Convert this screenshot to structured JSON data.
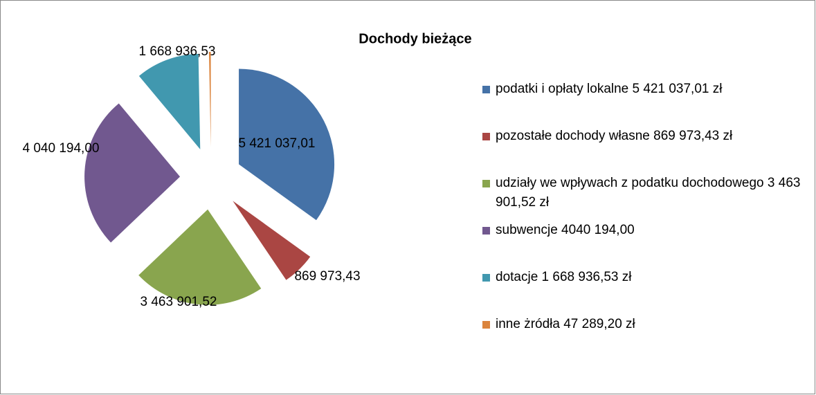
{
  "chart_data": {
    "type": "pie",
    "title": "Dochody bieżące",
    "categories": [
      "podatki i opłaty lokalne 5 421 037,01 zł",
      "pozostałe dochody własne 869 973,43 zł",
      "udziały we wpływach z podatku dochodowego 3 463 901,52 zł",
      "subwencje 4040 194,00",
      "dotacje 1 668 936,53 zł",
      "inne żródła 47 289,20 zł"
    ],
    "values": [
      5421037.01,
      869973.43,
      3463901.52,
      4040194.0,
      1668936.53,
      47289.2
    ],
    "value_labels": [
      "5 421 037,01",
      "869 973,43",
      "3 463 901,52",
      "4 040 194,00",
      "1 668 936,53",
      null
    ],
    "colors": [
      "#4572a7",
      "#aa4643",
      "#89a54e",
      "#71588f",
      "#4198af",
      "#db843d"
    ],
    "legend": "right"
  }
}
